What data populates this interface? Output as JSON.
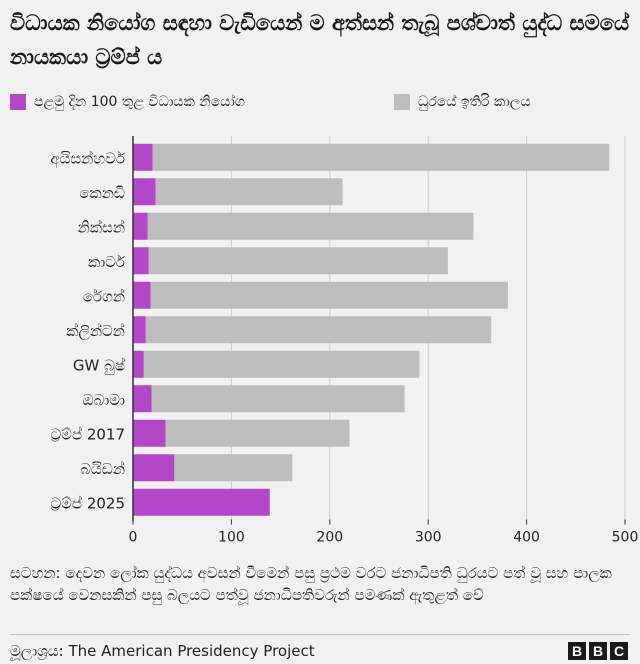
{
  "title": "විධායක නියෝග සඳහා වැඩියෙන් ම අත්සන් තැබූ පශ්චාත් යුද්ධ සමයේ නායකයා ට්‍රම්ප් ය",
  "legend": {
    "first_100": "පළමු දින 100 තුළ විධායක නියෝග",
    "rest_of_term": "ධුරයේ ඉතිරි කාලය"
  },
  "colors": {
    "first_100": "#b447c8",
    "rest_of_term": "#bdbdbd",
    "axis": "#333333",
    "grid": "#cccccc"
  },
  "chart_data": {
    "type": "bar",
    "orientation": "horizontal",
    "stacked": true,
    "categories": [
      "අයිසන්හවර්",
      "කෙනඩි",
      "නික්සන්",
      "කාටර්",
      "රේගන්",
      "ක්ලින්ටන්",
      "GW බුෂ්",
      "ඔබාමා",
      "ට්‍රම්ප් 2017",
      "බයිඩන්",
      "ට්‍රම්ප් 2025"
    ],
    "series": [
      {
        "name": "පළමු දින 100 තුළ විධායක නියෝග",
        "values": [
          20,
          23,
          15,
          16,
          18,
          13,
          11,
          19,
          33,
          42,
          139
        ]
      },
      {
        "name": "ධුරයේ ඉතිරි කාලය",
        "values": [
          464,
          190,
          331,
          304,
          363,
          351,
          280,
          257,
          187,
          120,
          0
        ]
      }
    ],
    "xlim": [
      0,
      500
    ],
    "xticks": [
      0,
      100,
      200,
      300,
      400,
      500
    ],
    "grid": true,
    "legend_position": "top"
  },
  "note": "සටහන: දෙවන ලෝක යුද්ධය අවසන් වීමෙන් පසු ප්‍රථම වරට ජනාධිපති ධුරයට පත් වූ සහ පාලක පක්ෂයේ වෙනසකින් පසු බලයට පත්වූ ජනාධිපතිවරුන් පමණක් ඇතුළත් වේ",
  "source": "මූලාශ්‍රය: The American Presidency Project",
  "logo": [
    "B",
    "B",
    "C"
  ]
}
